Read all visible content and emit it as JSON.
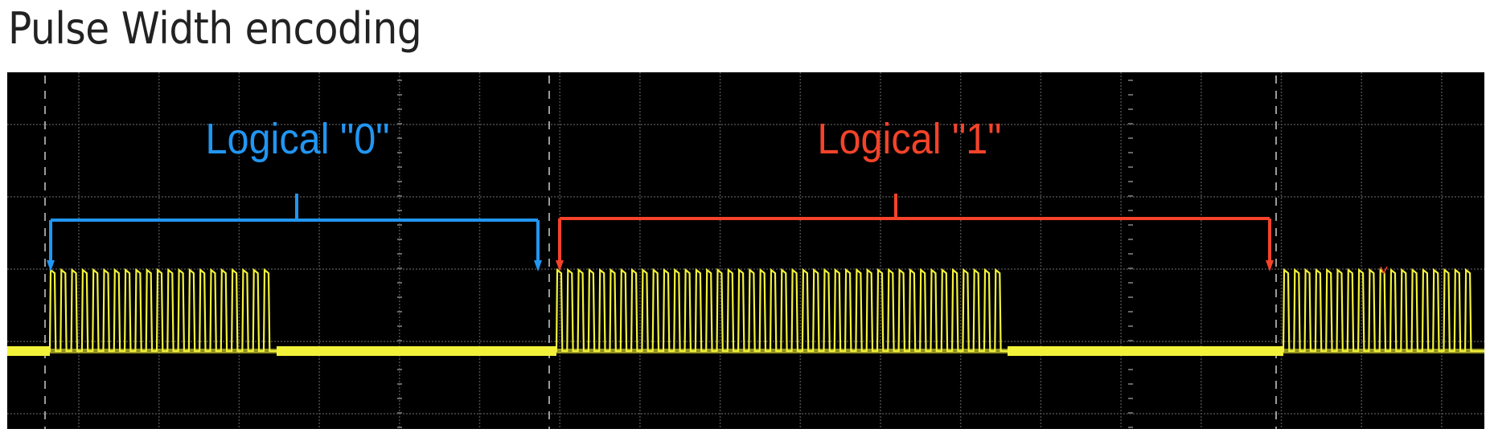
{
  "title": "Pulse Width encoding",
  "annotations": [
    {
      "label": "Logical \"0\"",
      "color": "#2196F3"
    },
    {
      "label": "Logical \"1\"",
      "color": "#F4432A"
    }
  ],
  "colors": {
    "background": "#000000",
    "signal": "#F2F23A",
    "grid": "#4a4a4a",
    "marker": "#9a9a9a"
  }
}
